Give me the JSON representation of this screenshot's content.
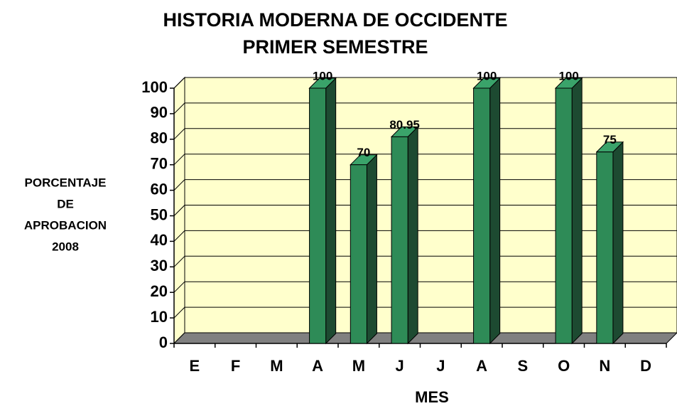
{
  "chart_data": {
    "type": "bar3d",
    "title": "HISTORIA MODERNA DE OCCIDENTE",
    "subtitle": "PRIMER SEMESTRE",
    "y_label": [
      "PORCENTAJE",
      "DE",
      "APROBACION",
      "2008"
    ],
    "x_label": "MES",
    "categories": [
      "E",
      "F",
      "M",
      "A",
      "M",
      "J",
      "J",
      "A",
      "S",
      "O",
      "N",
      "D"
    ],
    "values": [
      null,
      null,
      null,
      100,
      70,
      80.95,
      null,
      100,
      null,
      100,
      75,
      null
    ],
    "color": "#2e8b57",
    "ylim": [
      0,
      100
    ],
    "yticks": [
      0,
      10,
      20,
      30,
      40,
      50,
      60,
      70,
      80,
      90,
      100
    ],
    "grid": true
  }
}
